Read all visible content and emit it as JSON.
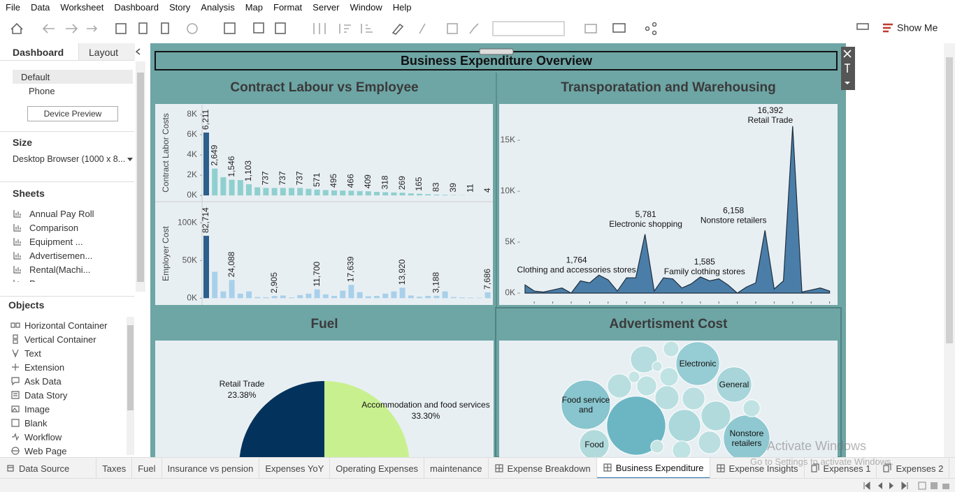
{
  "menu": [
    "File",
    "Data",
    "Worksheet",
    "Dashboard",
    "Story",
    "Analysis",
    "Map",
    "Format",
    "Server",
    "Window",
    "Help"
  ],
  "toolbar": {
    "show_me": "Show Me"
  },
  "side_panel": {
    "tabs": [
      "Dashboard",
      "Layout"
    ],
    "devices": [
      "Default",
      "Phone"
    ],
    "device_preview": "Device Preview",
    "size_heading": "Size",
    "size_value": "Desktop Browser (1000 x 8...",
    "sheets_heading": "Sheets",
    "sheets": [
      "Annual Pay Roll",
      "Comparison",
      "Equipment ...",
      "Advertisemen...",
      "Rental(Machi...",
      "Power"
    ],
    "objects_heading": "Objects",
    "objects": [
      "Horizontal Container",
      "Vertical Container",
      "Text",
      "Extension",
      "Ask Data",
      "Data Story",
      "Image",
      "Blank",
      "Workflow",
      "Web Page"
    ]
  },
  "dashboard_title": "Business Expenditure Overview",
  "chart_data": [
    {
      "type": "bar",
      "title": "Contract Labour vs Employee",
      "series": [
        {
          "y_label": "Contract Labor Costs",
          "color": "#8fd0cf",
          "lead_color": "#2d5f8b",
          "values": [
            6211,
            2649,
            1800,
            1546,
            1520,
            1103,
            800,
            737,
            737,
            737,
            737,
            737,
            650,
            571,
            530,
            495,
            480,
            466,
            430,
            409,
            350,
            318,
            290,
            269,
            200,
            165,
            120,
            83,
            60,
            39,
            25,
            11,
            8,
            4
          ],
          "value_labels": [
            "6,211",
            "2,649",
            null,
            "1,546",
            null,
            "1,103",
            null,
            "737",
            null,
            "737",
            null,
            "737",
            null,
            "571",
            null,
            "495",
            null,
            "466",
            null,
            "409",
            null,
            "318",
            null,
            "269",
            null,
            "165",
            null,
            "83",
            null,
            "39",
            null,
            "11",
            null,
            "4"
          ],
          "ylim": [
            -550,
            8965
          ],
          "yticks": [
            {
              "value": 0,
              "label": "0K"
            },
            {
              "value": 2000,
              "label": "2K"
            },
            {
              "value": 4000,
              "label": "4K"
            },
            {
              "value": 6000,
              "label": "6K"
            },
            {
              "value": 8000,
              "label": "8K"
            }
          ]
        },
        {
          "y_label": "Employer Cost",
          "color": "#a9d0ea",
          "lead_color": "#2d5f8b",
          "values": [
            82714,
            35000,
            9000,
            24088,
            6000,
            9000,
            1500,
            1200,
            2905,
            3500,
            1000,
            4000,
            6000,
            11700,
            5000,
            3000,
            10000,
            17639,
            8000,
            2500,
            3000,
            6000,
            9000,
            13920,
            3500,
            2000,
            3000,
            3188,
            9000,
            1500,
            1000,
            800,
            600,
            7686
          ],
          "value_labels": [
            "82,714",
            null,
            null,
            "24,088",
            null,
            null,
            null,
            null,
            "2,905",
            null,
            null,
            null,
            null,
            "11,700",
            null,
            null,
            null,
            "17,639",
            null,
            null,
            null,
            null,
            null,
            "13,920",
            null,
            null,
            null,
            "3,188",
            null,
            null,
            null,
            null,
            null,
            "7,686"
          ],
          "ylim": [
            -9000,
            127000
          ],
          "yticks": [
            {
              "value": 0,
              "label": "0K"
            },
            {
              "value": 50000,
              "label": "50K"
            },
            {
              "value": 100000,
              "label": "100K"
            }
          ]
        }
      ]
    },
    {
      "type": "area",
      "title": "Transporatation and Warehousing",
      "color": "#4a7ea8",
      "line_color": "#1f2d3d",
      "categories": [
        null,
        null,
        null,
        null,
        null,
        null,
        null,
        null,
        "Clothing and accessories stores",
        null,
        null,
        null,
        null,
        "Electronic shopping",
        null,
        null,
        null,
        null,
        null,
        "Family clothing stores",
        null,
        null,
        null,
        null,
        null,
        null,
        "Nonstore retailers",
        null,
        null,
        "Retail Trade",
        null,
        null,
        null,
        null
      ],
      "values": [
        800,
        200,
        100,
        300,
        500,
        0,
        1200,
        1000,
        1764,
        1300,
        200,
        1500,
        1500,
        5781,
        200,
        1500,
        1400,
        500,
        900,
        1585,
        1200,
        1400,
        800,
        0,
        600,
        1000,
        6158,
        400,
        1200,
        16392,
        100,
        300,
        500,
        200
      ],
      "value_labels": [
        null,
        null,
        null,
        null,
        null,
        null,
        null,
        null,
        "1,764",
        null,
        null,
        null,
        null,
        "5,781",
        null,
        null,
        null,
        null,
        null,
        "1,585",
        null,
        null,
        null,
        null,
        null,
        null,
        "6,158",
        null,
        null,
        "16,392",
        null,
        null,
        null,
        null
      ],
      "ylim": [
        -550,
        18500
      ],
      "yticks": [
        {
          "value": 0,
          "label": "0K"
        },
        {
          "value": 5000,
          "label": "5K"
        },
        {
          "value": 10000,
          "label": "10K"
        },
        {
          "value": 15000,
          "label": "15K"
        }
      ]
    },
    {
      "type": "pie",
      "title": "Fuel",
      "categories": [
        "Retail Trade",
        "Accommodation and food services"
      ],
      "values": [
        23.38,
        33.3
      ],
      "value_labels": [
        "23.38%",
        "33.30%"
      ],
      "colors": [
        "#03335c",
        "#c9f08f"
      ]
    },
    {
      "type": "bubble",
      "title": "Advertisment Cost",
      "categories": [
        "Electronic",
        "General",
        "Food service and",
        "Nonstore retailers",
        "Food",
        null,
        null,
        null,
        null,
        null,
        null,
        null,
        null,
        null,
        null,
        null,
        null,
        null,
        null,
        null,
        null
      ],
      "values": [
        1024,
        676,
        1296,
        1156,
        484,
        1849,
        400,
        144,
        324,
        225,
        196,
        324,
        289,
        484,
        576,
        289,
        169,
        81,
        100,
        196,
        64
      ],
      "color_range": [
        "#c6e5e4",
        "#6cb6c4"
      ]
    }
  ],
  "sheet_tabs": [
    "Data Source",
    "Taxes",
    "Fuel",
    "Insurance vs pension",
    "Expenses YoY",
    "Operating Expenses",
    "maintenance",
    "Expense Breakdown",
    "Business Expenditure",
    "Expense Insights",
    "Expenses 1",
    "Expenses 2"
  ],
  "active_tab": 8,
  "watermark": {
    "title": "Activate Windows",
    "subtitle": "Go to Settings to activate Windows."
  }
}
